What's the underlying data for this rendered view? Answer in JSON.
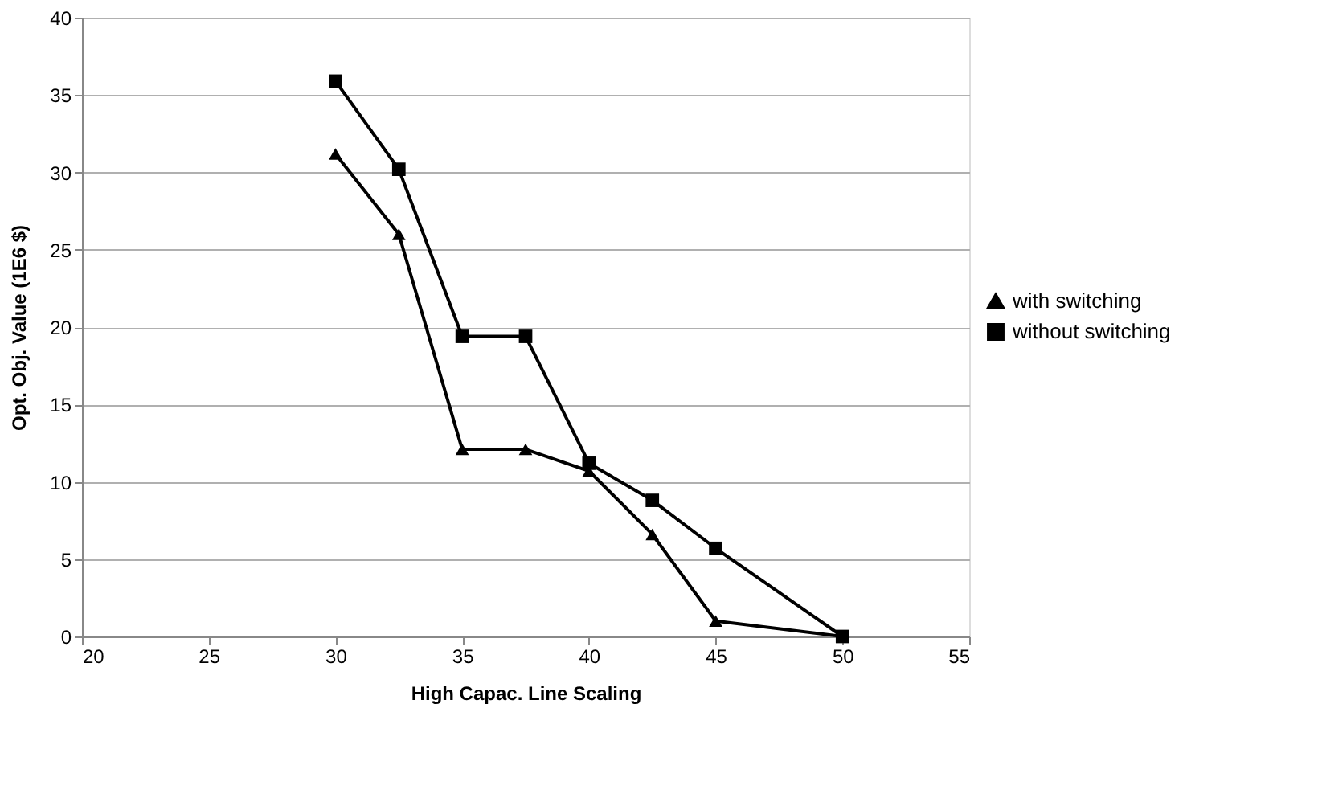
{
  "chart_data": {
    "type": "line",
    "xlabel": "High Capac. Line Scaling",
    "ylabel": "Opt. Obj. Value (1E6 $)",
    "x": [
      30,
      32.5,
      35,
      37.5,
      40,
      42.5,
      45,
      50
    ],
    "series": [
      {
        "name": "with switching",
        "color": "#000000",
        "marker": "triangle",
        "values": [
          31.2,
          26,
          12.1,
          12.1,
          10.7,
          6.6,
          1,
          0
        ]
      },
      {
        "name": "without switching",
        "color": "#000000",
        "marker": "square",
        "values": [
          35.9,
          30.2,
          19.4,
          19.4,
          11.2,
          8.8,
          5.7,
          0
        ]
      }
    ],
    "xlim": [
      20,
      55
    ],
    "xticks": [
      20,
      25,
      30,
      35,
      40,
      45,
      50,
      55
    ],
    "ylim": [
      0,
      40
    ],
    "yticks": [
      0,
      5,
      10,
      15,
      20,
      25,
      30,
      35,
      40
    ],
    "grid": "y",
    "legend": "right",
    "line_style": "solid"
  }
}
